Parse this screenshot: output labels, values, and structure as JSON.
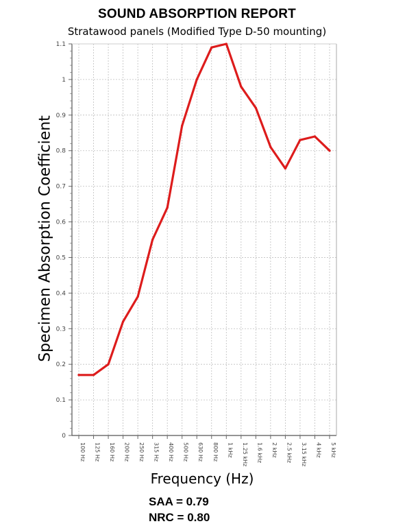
{
  "chart_data": {
    "type": "line",
    "title": "SOUND ABSORPTION REPORT",
    "subtitle": "Stratawood panels (Modified Type D-50 mounting)",
    "xlabel": "Frequency (Hz)",
    "ylabel": "Specimen Absorption Coefficient",
    "categories": [
      "100 Hz",
      "125 Hz",
      "160 Hz",
      "200 Hz",
      "250 Hz",
      "315 Hz",
      "400 Hz",
      "500 Hz",
      "630 Hz",
      "800 Hz",
      "1 kHz",
      "1.25 kHz",
      "1.6 kHz",
      "2 kHz",
      "2.5 kHz",
      "3.15 kHz",
      "4 kHz",
      "5 kHz"
    ],
    "series": [
      {
        "values": [
          0.17,
          0.17,
          0.2,
          0.32,
          0.39,
          0.55,
          0.64,
          0.87,
          1.0,
          1.09,
          1.1,
          0.98,
          0.92,
          0.81,
          0.75,
          0.83,
          0.84,
          0.8
        ]
      }
    ],
    "ylim": [
      0,
      1.1
    ],
    "yticks": [
      "0",
      "0.1",
      "0.2",
      "0.3",
      "0.4",
      "0.5",
      "0.6",
      "0.7",
      "0.8",
      "0.9",
      "1",
      "1.1"
    ],
    "grid": true,
    "line_color": "#dd1c1c"
  },
  "stats": {
    "saa": "SAA = 0.79",
    "nrc": "NRC = 0.80"
  }
}
